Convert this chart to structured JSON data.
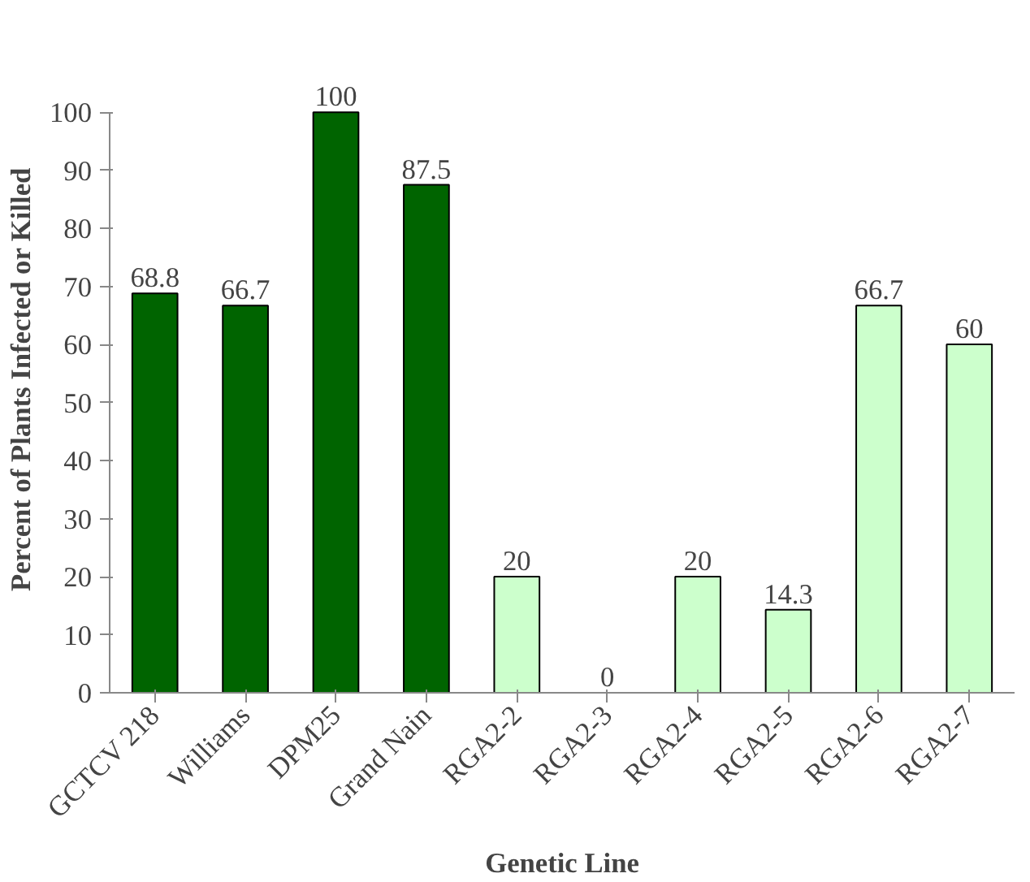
{
  "chart_data": {
    "type": "bar",
    "xlabel": "Genetic Line",
    "ylabel": "Percent of Plants Infected or Killed",
    "categories": [
      "GCTCV 218",
      "Williams",
      "DPM25",
      "Grand Nain",
      "RGA2-2",
      "RGA2-3",
      "RGA2-4",
      "RGA2-5",
      "RGA2-6",
      "RGA2-7"
    ],
    "values": [
      68.8,
      66.7,
      100,
      87.5,
      20,
      0,
      20,
      14.3,
      66.7,
      60
    ],
    "colors": [
      "#006400",
      "#006400",
      "#006400",
      "#006400",
      "#ccffcc",
      "#ccffcc",
      "#ccffcc",
      "#ccffcc",
      "#ccffcc",
      "#ccffcc"
    ],
    "ylim": [
      0,
      100
    ],
    "yticks": [
      0,
      10,
      20,
      30,
      40,
      50,
      60,
      70,
      80,
      90,
      100
    ],
    "grid": false,
    "data_labels": true
  }
}
